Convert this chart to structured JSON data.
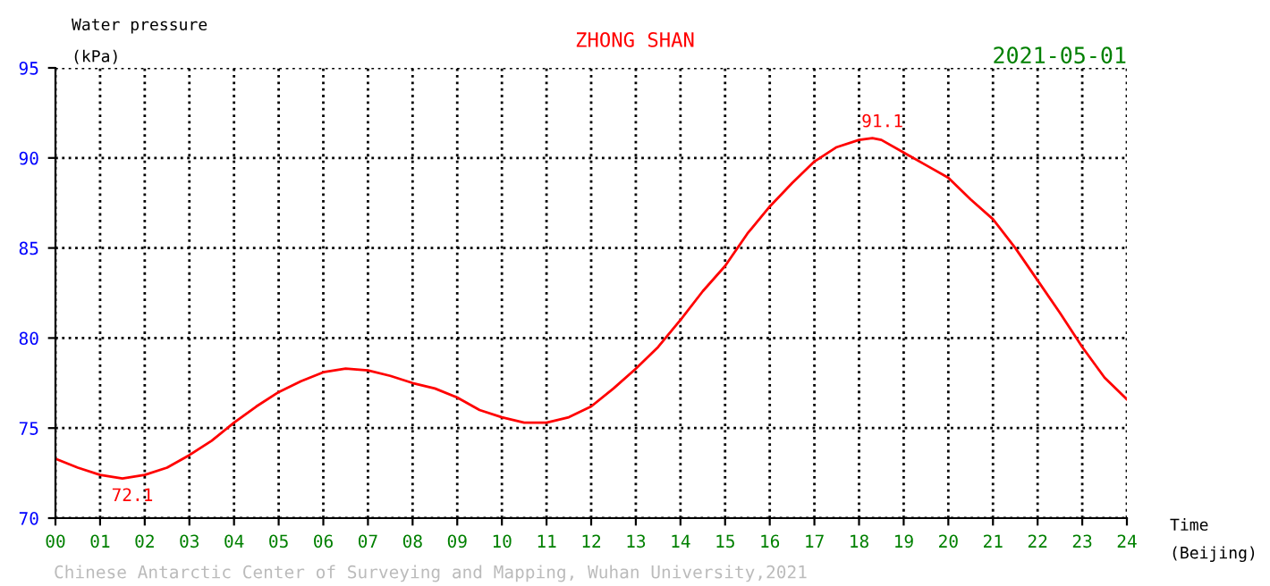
{
  "chart_data": {
    "type": "line",
    "title": "ZHONG SHAN",
    "subtitle": "2021-05-01",
    "ylabel": "Water pressure\n(kPa)",
    "xlabel": "Time\n(Beijing)",
    "x": [
      0,
      0.5,
      1,
      1.5,
      2,
      2.5,
      3,
      3.5,
      4,
      4.5,
      5,
      5.5,
      6,
      6.5,
      7,
      7.5,
      8,
      8.5,
      9,
      9.5,
      10,
      10.5,
      11,
      11.5,
      12,
      12.5,
      13,
      13.5,
      14,
      14.5,
      15,
      15.5,
      16,
      16.5,
      17,
      17.5,
      18,
      18.3,
      18.5,
      19,
      19.5,
      20,
      20.5,
      21,
      21.5,
      22,
      22.5,
      23,
      23.5,
      24
    ],
    "series": [
      {
        "color": "#ff0000",
        "values": [
          73.3,
          72.8,
          72.4,
          72.2,
          72.4,
          72.8,
          73.5,
          74.3,
          75.3,
          76.2,
          77.0,
          77.6,
          78.1,
          78.3,
          78.2,
          77.9,
          77.5,
          77.2,
          76.7,
          76.0,
          75.6,
          75.3,
          75.3,
          75.6,
          76.2,
          77.2,
          78.3,
          79.5,
          81.0,
          82.6,
          84.0,
          85.8,
          87.3,
          88.6,
          89.8,
          90.6,
          91.0,
          91.1,
          91.0,
          90.3,
          89.6,
          88.9,
          87.7,
          86.6,
          85.0,
          83.2,
          81.4,
          79.5,
          77.8,
          76.6
        ]
      }
    ],
    "xlim": [
      0,
      24
    ],
    "ylim": [
      70,
      95
    ],
    "xticks": [
      {
        "value": 0,
        "label": "00"
      },
      {
        "value": 1,
        "label": "01"
      },
      {
        "value": 2,
        "label": "02"
      },
      {
        "value": 3,
        "label": "03"
      },
      {
        "value": 4,
        "label": "04"
      },
      {
        "value": 5,
        "label": "05"
      },
      {
        "value": 6,
        "label": "06"
      },
      {
        "value": 7,
        "label": "07"
      },
      {
        "value": 8,
        "label": "08"
      },
      {
        "value": 9,
        "label": "09"
      },
      10,
      11,
      12,
      13,
      14,
      15,
      16,
      17,
      18,
      19,
      20,
      21,
      22,
      23,
      24
    ],
    "yticks": [
      70,
      75,
      80,
      85,
      90,
      95
    ],
    "annotations": [
      {
        "text": "72.1",
        "x": 1.5,
        "y": 72.1
      },
      {
        "text": "91.1",
        "x": 18.3,
        "y": 91.1
      },
      "Chinese Antarctic Center of Surveying and Mapping, Wuhan University,2021"
    ],
    "grid": true,
    "legend": false,
    "marker": "none",
    "line_style": "solid"
  }
}
